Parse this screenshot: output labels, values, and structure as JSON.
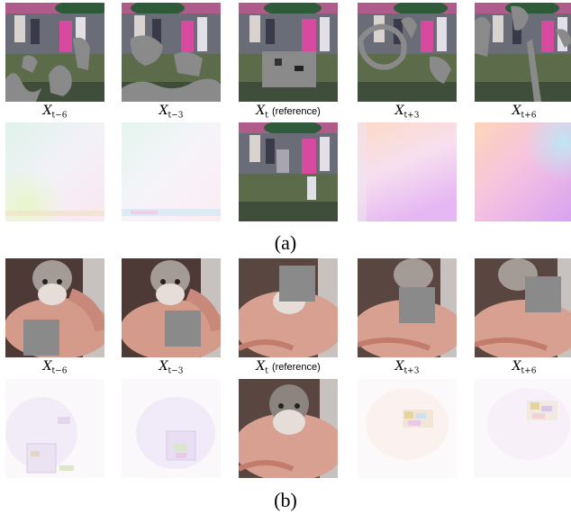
{
  "panels": [
    {
      "id": "a",
      "label": "(a)",
      "columns": [
        {
          "symbol": "X",
          "sub": "t−6",
          "suffix": ""
        },
        {
          "symbol": "X",
          "sub": "t−3",
          "suffix": ""
        },
        {
          "symbol": "X",
          "sub": "t",
          "suffix": "(reference)"
        },
        {
          "symbol": "X",
          "sub": "t+3",
          "suffix": ""
        },
        {
          "symbol": "X",
          "sub": "t+6",
          "suffix": ""
        }
      ]
    },
    {
      "id": "b",
      "label": "(b)",
      "columns": [
        {
          "symbol": "X",
          "sub": "t−6",
          "suffix": ""
        },
        {
          "symbol": "X",
          "sub": "t−3",
          "suffix": ""
        },
        {
          "symbol": "X",
          "sub": "t",
          "suffix": "(reference)"
        },
        {
          "symbol": "X",
          "sub": "t+3",
          "suffix": ""
        },
        {
          "symbol": "X",
          "sub": "t+6",
          "suffix": ""
        }
      ]
    }
  ],
  "colors": {
    "mask": "#8a8a8a",
    "background": "#ffffff"
  }
}
